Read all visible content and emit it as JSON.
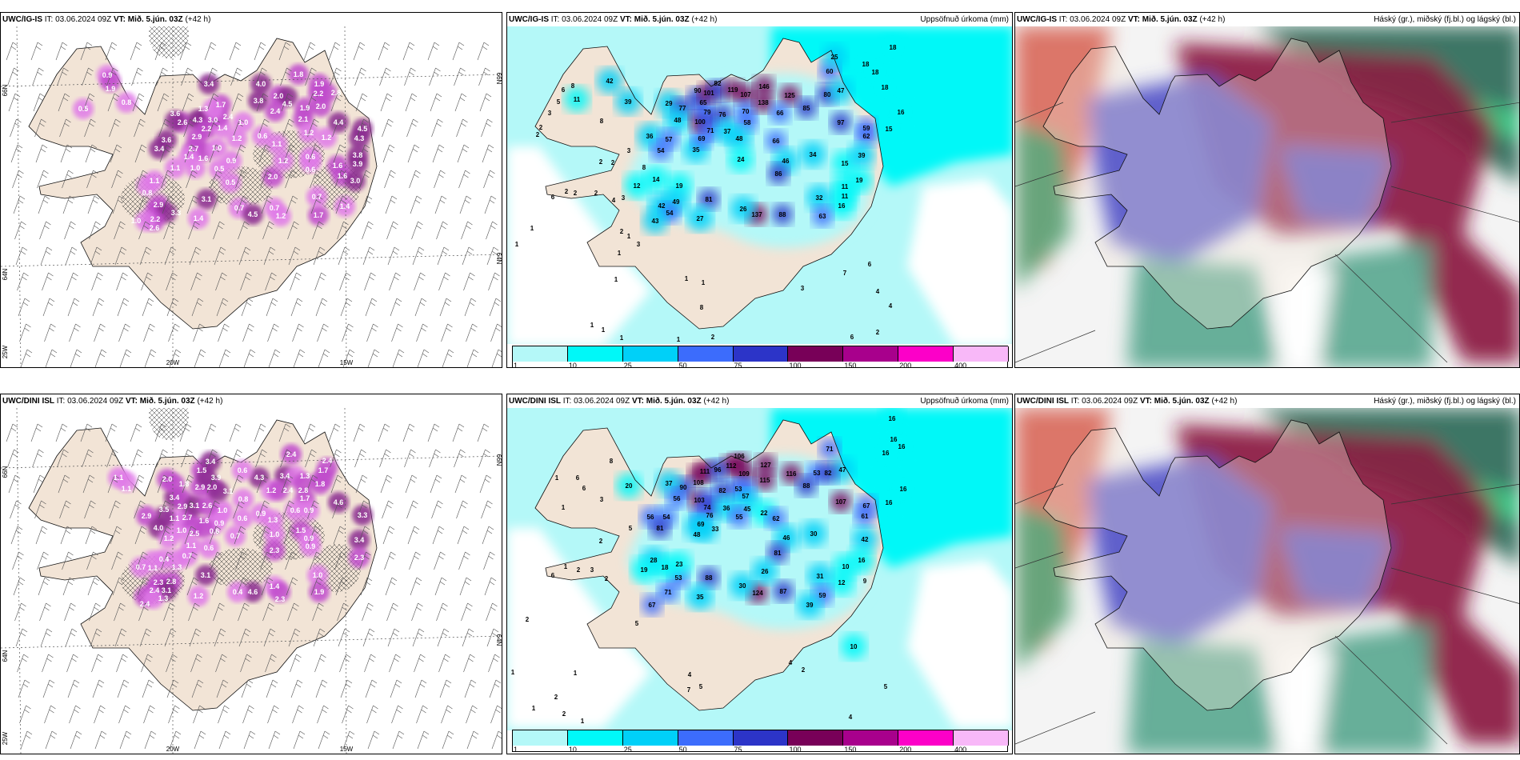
{
  "common": {
    "it_label": "IT:",
    "it_value": "03.06.2024 09Z",
    "vt_label": "VT:",
    "vt_value": "Mið. 5.jún. 03Z",
    "lead": "(+42 h)"
  },
  "rows": [
    {
      "model": "UWC/IG-IS"
    },
    {
      "model": "UWC/DINI ISL"
    }
  ],
  "precip_title": "Uppsöfnuð úrkoma (mm)",
  "cloud_title": "Háský (gr.), miðský (fj.bl.) og lágský (bl.)",
  "axis_labels": {
    "lat_north": "66N",
    "lat_south": "64N",
    "lon_25": "25W",
    "lon_20": "20W",
    "lon_15": "15W"
  },
  "colorbar": {
    "ticks": [
      "1",
      "10",
      "25",
      "50",
      "75",
      "100",
      "150",
      "200",
      "400"
    ],
    "colors": [
      "#b4f8f8",
      "#00f8f8",
      "#00d0f8",
      "#3c6cfc",
      "#2c34c8",
      "#780058",
      "#a8008c",
      "#fc00c8",
      "#f8b8f8"
    ]
  },
  "colors": {
    "land": "#f2e4d6",
    "sea_light": "#b4f8f8",
    "cloud_high": "#2c6a58",
    "cloud_mid": "#8a1a40",
    "cloud_low": "#5252c8"
  },
  "precip_values_top": [
    "42",
    "39",
    "6",
    "8",
    "11",
    "5",
    "3",
    "8",
    "2",
    "2",
    "3",
    "8",
    "2",
    "2",
    "12",
    "2",
    "2",
    "2",
    "6",
    "4",
    "3",
    "14",
    "19",
    "42",
    "49",
    "54",
    "43",
    "81",
    "27",
    "29",
    "77",
    "48",
    "36",
    "57",
    "54",
    "35",
    "69",
    "100",
    "79",
    "71",
    "65",
    "90",
    "101",
    "82",
    "76",
    "37",
    "119",
    "107",
    "70",
    "58",
    "48",
    "24",
    "146",
    "138",
    "125",
    "66",
    "85",
    "60",
    "25",
    "80",
    "47",
    "97",
    "66",
    "46",
    "86",
    "34",
    "15",
    "59",
    "62",
    "39",
    "19",
    "11",
    "11",
    "16",
    "32",
    "63",
    "88",
    "137",
    "26",
    "18",
    "18",
    "18",
    "18",
    "16",
    "15",
    "6",
    "7",
    "4",
    "4",
    "2",
    "6",
    "3",
    "1",
    "1",
    "8",
    "1",
    "1",
    "3",
    "2",
    "1",
    "1",
    "1",
    "1",
    "1",
    "1",
    "1",
    "2"
  ],
  "precip_values_bottom": [
    "16",
    "16",
    "16",
    "16",
    "16",
    "16",
    "71",
    "47",
    "53",
    "82",
    "116",
    "88",
    "127",
    "115",
    "112",
    "106",
    "109",
    "53",
    "57",
    "45",
    "111",
    "108",
    "96",
    "82",
    "90",
    "37",
    "56",
    "103",
    "74",
    "76",
    "36",
    "55",
    "22",
    "62",
    "69",
    "48",
    "33",
    "56",
    "54",
    "81",
    "46",
    "81",
    "30",
    "107",
    "67",
    "61",
    "42",
    "16",
    "10",
    "12",
    "9",
    "31",
    "59",
    "39",
    "87",
    "124",
    "30",
    "26",
    "88",
    "35",
    "53",
    "71",
    "67",
    "28",
    "18",
    "23",
    "19",
    "20",
    "8",
    "6",
    "6",
    "1",
    "3",
    "1",
    "5",
    "2",
    "1",
    "2",
    "3",
    "2",
    "6",
    "5",
    "2",
    "10",
    "4",
    "2",
    "5",
    "4",
    "1",
    "1",
    "2",
    "1",
    "2",
    "1",
    "4",
    "7",
    "5"
  ],
  "wind_values_top": [
    "0.9",
    "1.9",
    "0.8",
    "0.5",
    "3.4",
    "2.6",
    "3.6",
    "4.3",
    "3.0",
    "2.2",
    "1.4",
    "2.9",
    "2.7",
    "1.6",
    "1.0",
    "1.4",
    "3.6",
    "3.4",
    "1.1",
    "1.0",
    "0.5",
    "0.5",
    "0.9",
    "1.2",
    "1.0",
    "1.7",
    "2.4",
    "1.3",
    "3.1",
    "1.4",
    "2.9",
    "2.2",
    "3.3",
    "2.6",
    "1.0",
    "1.1",
    "0.8",
    "0.7",
    "4.5",
    "0.7",
    "1.2",
    "1.7",
    "0.7",
    "2.0",
    "1.2",
    "0.6",
    "1.1",
    "3.8",
    "4.0",
    "2.0",
    "4.5",
    "2.4",
    "1.9",
    "2.1",
    "1.2",
    "1.2",
    "0.6",
    "0.6",
    "1.8",
    "1.9",
    "2.2",
    "2.8",
    "2.0",
    "4.4",
    "4.5",
    "4.3",
    "3.8",
    "3.9",
    "1.6",
    "1.6",
    "3.0",
    "1.4"
  ],
  "wind_values_bottom": [
    "1.1",
    "1.1",
    "2.4",
    "3.4",
    "1.3",
    "2.8",
    "1.8",
    "1.7",
    "2.4",
    "1.7",
    "0.6",
    "0.9",
    "4.3",
    "1.2",
    "2.4",
    "0.9",
    "1.3",
    "1.0",
    "2.3",
    "4.6",
    "3.3",
    "3.4",
    "2.3",
    "1.5",
    "0.9",
    "0.9",
    "1.0",
    "1.9",
    "1.4",
    "2.3",
    "4.6",
    "0.4",
    "0.7",
    "1.0",
    "0.9",
    "0.6",
    "1.6",
    "2.5",
    "1.0",
    "2.7",
    "1.1",
    "3.5",
    "2.9",
    "4.0",
    "1.2",
    "3.4",
    "2.9",
    "3.1",
    "2.6",
    "2.9",
    "2.0",
    "3.1",
    "1.5",
    "3.9",
    "3.4",
    "2.0",
    "1.8",
    "0.6",
    "0.8",
    "0.6",
    "1.1",
    "0.6",
    "0.7",
    "1.3",
    "0.4",
    "1.1",
    "0.7",
    "3.1",
    "2.8",
    "2.3",
    "2.4",
    "3.1",
    "2.4",
    "1.3",
    "1.2"
  ]
}
